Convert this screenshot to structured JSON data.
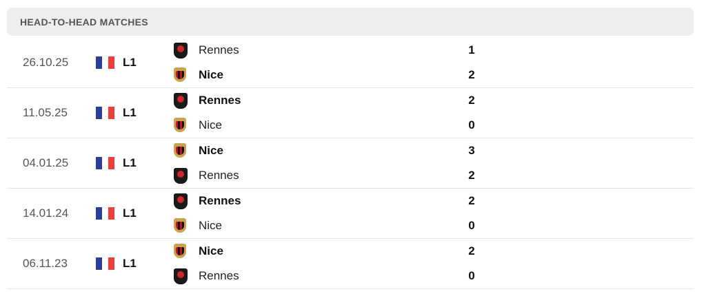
{
  "header": {
    "title": "HEAD-TO-HEAD MATCHES"
  },
  "colors": {
    "flag_blue": "#2b3f9a",
    "flag_white": "#ffffff",
    "flag_red": "#ee3e3a"
  },
  "matches": [
    {
      "date": "26.10.25",
      "league": "L1",
      "teams": [
        {
          "name": "Rennes",
          "score": "1",
          "winner": false,
          "crest": "rennes"
        },
        {
          "name": "Nice",
          "score": "2",
          "winner": true,
          "crest": "nice"
        }
      ]
    },
    {
      "date": "11.05.25",
      "league": "L1",
      "teams": [
        {
          "name": "Rennes",
          "score": "2",
          "winner": true,
          "crest": "rennes"
        },
        {
          "name": "Nice",
          "score": "0",
          "winner": false,
          "crest": "nice"
        }
      ]
    },
    {
      "date": "04.01.25",
      "league": "L1",
      "teams": [
        {
          "name": "Nice",
          "score": "3",
          "winner": true,
          "crest": "nice"
        },
        {
          "name": "Rennes",
          "score": "2",
          "winner": false,
          "crest": "rennes"
        }
      ]
    },
    {
      "date": "14.01.24",
      "league": "L1",
      "teams": [
        {
          "name": "Rennes",
          "score": "2",
          "winner": true,
          "crest": "rennes"
        },
        {
          "name": "Nice",
          "score": "0",
          "winner": false,
          "crest": "nice"
        }
      ]
    },
    {
      "date": "06.11.23",
      "league": "L1",
      "teams": [
        {
          "name": "Nice",
          "score": "2",
          "winner": true,
          "crest": "nice"
        },
        {
          "name": "Rennes",
          "score": "0",
          "winner": false,
          "crest": "rennes"
        }
      ]
    }
  ]
}
